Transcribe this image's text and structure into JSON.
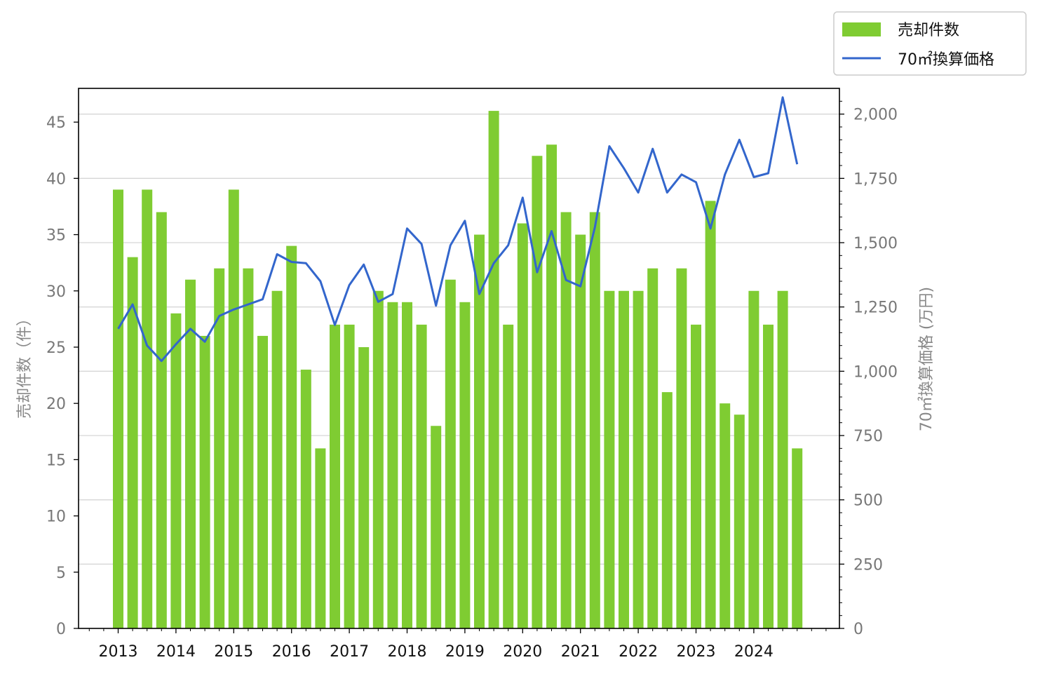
{
  "chart_data": {
    "type": "bar",
    "x_axis": {
      "tick_labels": [
        "2013",
        "2014",
        "2015",
        "2016",
        "2017",
        "2018",
        "2019",
        "2020",
        "2021",
        "2022",
        "2023",
        "2024"
      ]
    },
    "y_left": {
      "label": "売却件数（件）",
      "ylim": [
        0,
        48
      ],
      "ticks": [
        0,
        5,
        10,
        15,
        20,
        25,
        30,
        35,
        40,
        45
      ],
      "tick_labels": [
        "0",
        "5",
        "10",
        "15",
        "20",
        "25",
        "30",
        "35",
        "40",
        "45"
      ]
    },
    "y_right": {
      "label": "70㎡換算価格 (万円)",
      "ylim": [
        0,
        2100
      ],
      "ticks": [
        0,
        250,
        500,
        750,
        1000,
        1250,
        1500,
        1750,
        2000
      ],
      "tick_labels": [
        "0",
        "250",
        "500",
        "750",
        "1,000",
        "1,250",
        "1,500",
        "1,750",
        "2,000"
      ]
    },
    "grid": "horizontal (right axis)",
    "legend": {
      "placement": "top-right, outside plot"
    },
    "series": [
      {
        "name": "売却件数",
        "type": "bar",
        "axis": "left",
        "color": "#7FCC32",
        "values": [
          39,
          33,
          39,
          37,
          28,
          31,
          26,
          32,
          39,
          32,
          26,
          30,
          34,
          23,
          16,
          27,
          27,
          25,
          30,
          29,
          29,
          27,
          18,
          31,
          29,
          35,
          46,
          27,
          36,
          42,
          43,
          37,
          35,
          37,
          30,
          30,
          30,
          32,
          21,
          32,
          27,
          38,
          20,
          19,
          30,
          27,
          30,
          16
        ]
      },
      {
        "name": "70㎡換算価格",
        "type": "line",
        "axis": "right",
        "color": "#3366CC",
        "values": [
          1165,
          1260,
          1100,
          1040,
          1105,
          1165,
          1115,
          1215,
          1240,
          1260,
          1280,
          1455,
          1425,
          1420,
          1350,
          1180,
          1335,
          1415,
          1270,
          1300,
          1555,
          1495,
          1255,
          1490,
          1585,
          1300,
          1420,
          1490,
          1675,
          1385,
          1545,
          1355,
          1330,
          1560,
          1875,
          1790,
          1695,
          1865,
          1695,
          1765,
          1735,
          1555,
          1765,
          1900,
          1755,
          1770,
          2065,
          1805
        ]
      }
    ]
  }
}
